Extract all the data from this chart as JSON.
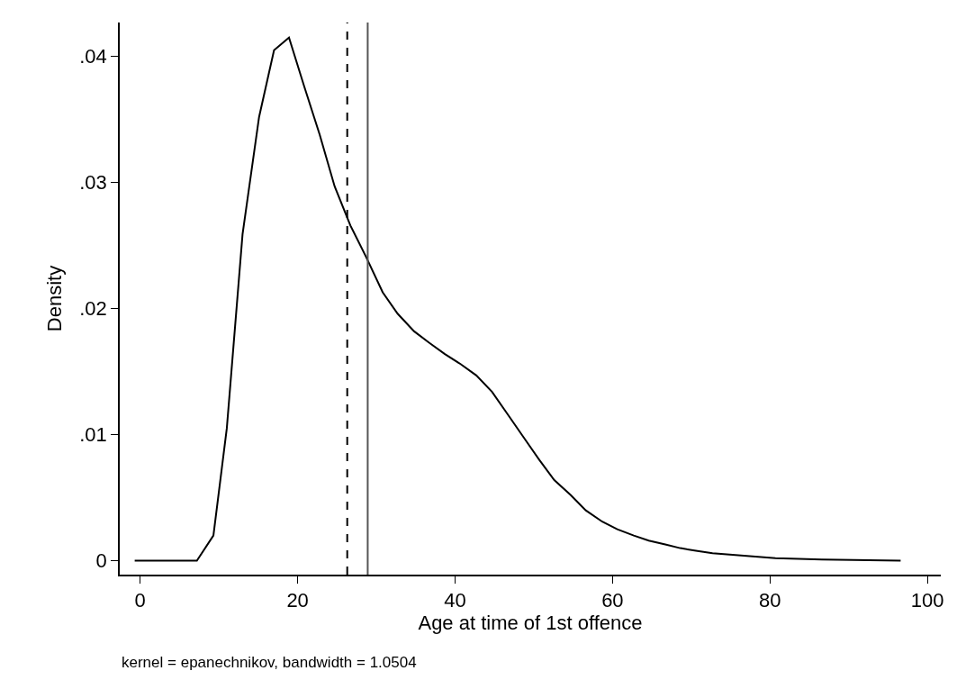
{
  "chart_data": {
    "type": "line",
    "xlabel": "Age at time of 1st offence",
    "ylabel": "Density",
    "annotations": [
      "kernel = epanechnikov, bandwidth = 1.0504"
    ],
    "x": [
      -0.7,
      7.2,
      9.3,
      11.0,
      13.0,
      15.1,
      17.0,
      18.9,
      20.8,
      22.8,
      24.7,
      26.7,
      28.7,
      30.8,
      32.7,
      34.8,
      36.7,
      38.7,
      40.7,
      42.7,
      44.7,
      46.7,
      48.7,
      50.7,
      52.6,
      54.7,
      56.6,
      58.7,
      60.6,
      62.7,
      64.6,
      66.7,
      68.6,
      70.6,
      72.7,
      76.7,
      80.7,
      86.6,
      96.6
    ],
    "series": [
      {
        "color": "#000000",
        "values": [
          0,
          0,
          0.002,
          0.0105,
          0.0259,
          0.0352,
          0.0405,
          0.0415,
          0.0377,
          0.0338,
          0.0297,
          0.0266,
          0.0241,
          0.0213,
          0.0196,
          0.0182,
          0.0173,
          0.0164,
          0.0156,
          0.0147,
          0.0134,
          0.0116,
          0.0098,
          0.008,
          0.0064,
          0.0052,
          0.004,
          0.0031,
          0.0025,
          0.002,
          0.0016,
          0.0013,
          0.001,
          0.0008,
          0.0006,
          0.0004,
          0.0002,
          0.0001,
          0
        ]
      }
    ],
    "xlim": [
      -2.6,
      101.7
    ],
    "xticks": [
      0,
      20,
      40,
      60,
      80,
      100
    ],
    "ylim": [
      -0.0011,
      0.0427
    ],
    "yticks": [
      0,
      {
        "value": 0.01,
        "label": ".01"
      },
      {
        "value": 0.02,
        "label": ".02"
      },
      {
        "value": 0.03,
        "label": ".03"
      },
      {
        "value": 0.04,
        "label": ".04"
      }
    ],
    "ref_lines": [
      {
        "axis": "x",
        "value": 26.3,
        "color": "#000000",
        "line_style": "dashed"
      },
      {
        "axis": "x",
        "value": 28.9,
        "color": "#555555",
        "line_style": "solid"
      }
    ],
    "grid": false,
    "marker": "none",
    "line_style": "solid"
  }
}
